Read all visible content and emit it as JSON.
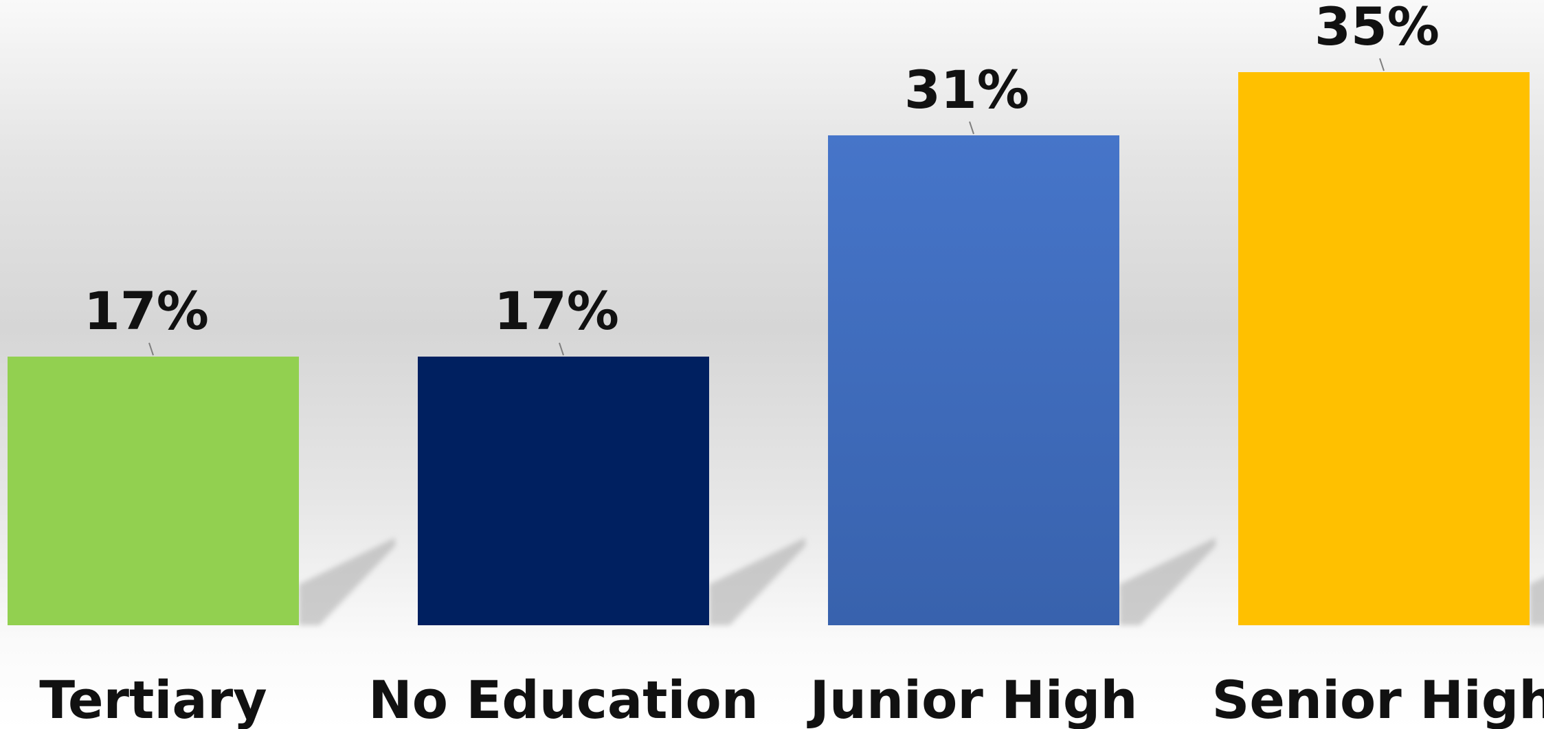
{
  "chart_data": {
    "type": "bar",
    "categories": [
      "Tertiary",
      "No Education",
      "Junior High",
      "Senior High"
    ],
    "values": [
      17,
      17,
      31,
      35
    ],
    "value_labels": [
      "17%",
      "17%",
      "31%",
      "35%"
    ],
    "unit": "%",
    "colors": [
      "#92d050",
      "#002060",
      "#4472c4",
      "#ffc000"
    ],
    "title": "",
    "xlabel": "",
    "ylabel": "",
    "grid": false,
    "legend": "none"
  }
}
